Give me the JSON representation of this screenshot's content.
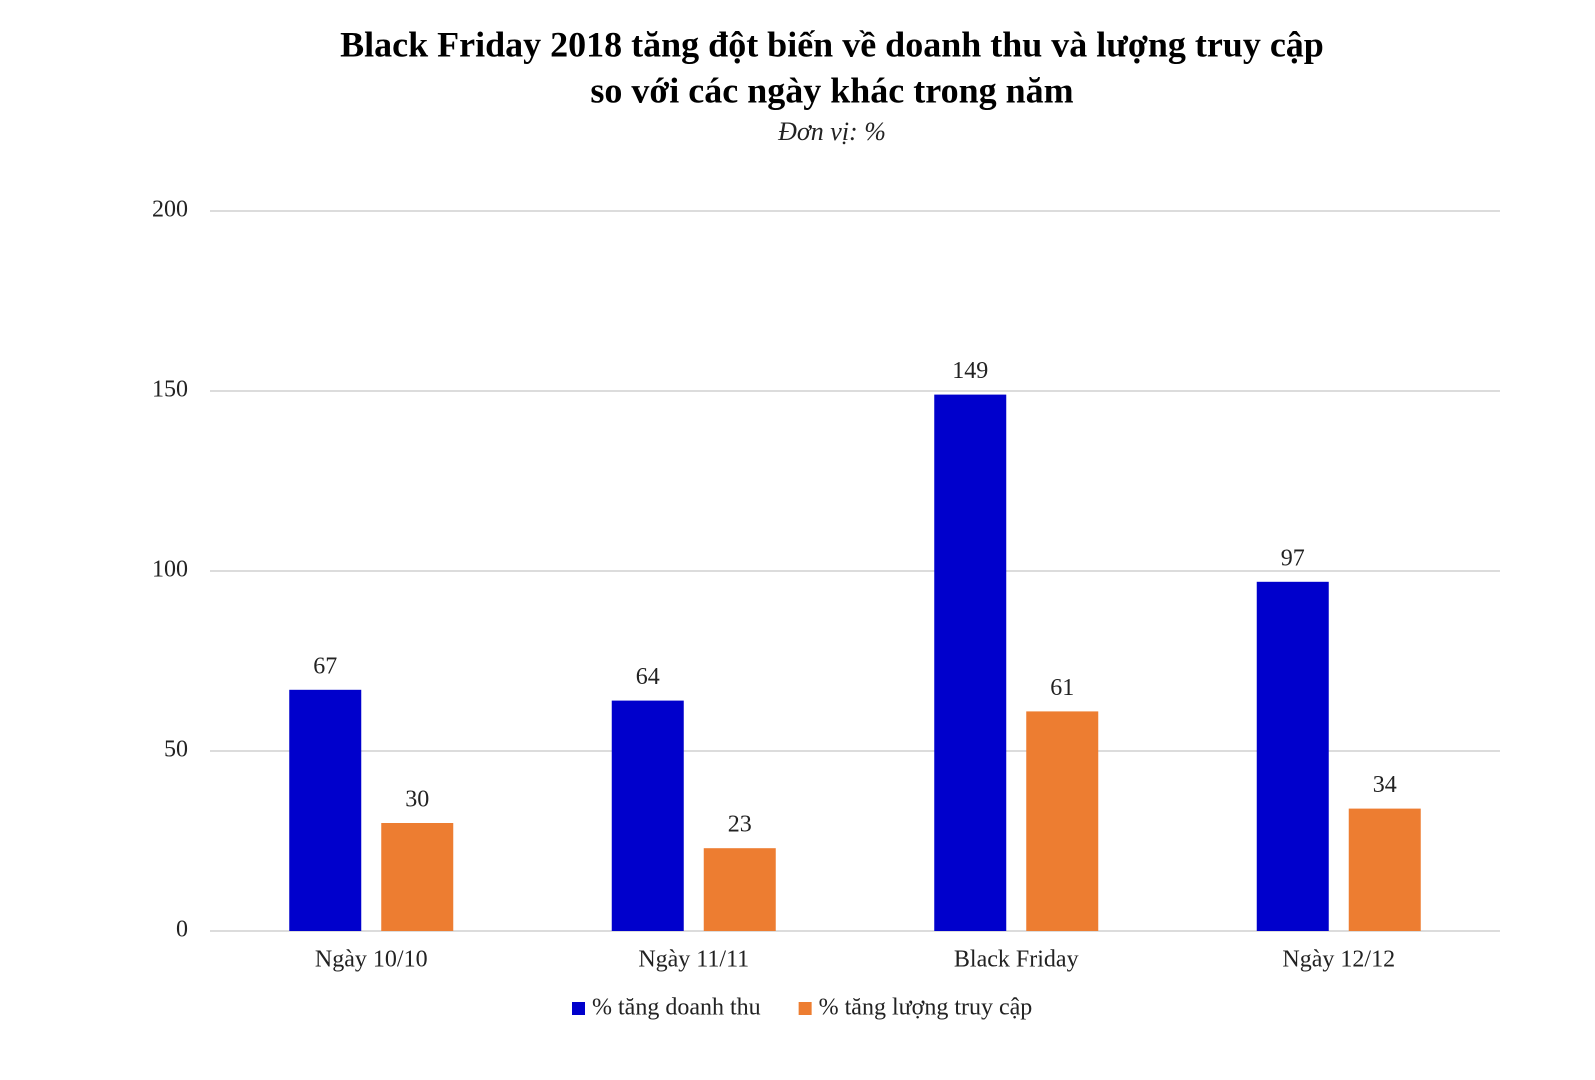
{
  "chart_data": {
    "type": "bar",
    "title": [
      "Black Friday 2018 tăng đột biến về doanh thu và lượng truy cập",
      "so với các ngày khác trong năm"
    ],
    "subtitle": "Đơn vị: %",
    "categories": [
      "Ngày 10/10",
      "Ngày 11/11",
      "Black Friday",
      "Ngày 12/12"
    ],
    "series": [
      {
        "name": "% tăng doanh thu",
        "color": "#0000cc",
        "values": [
          67,
          64,
          149,
          97
        ]
      },
      {
        "name": "% tăng lượng truy cập",
        "color": "#ed7d31",
        "values": [
          30,
          23,
          61,
          34
        ]
      }
    ],
    "ylim": [
      0,
      200
    ],
    "yticks": [
      0,
      50,
      100,
      150,
      200
    ],
    "grid": true,
    "legend": "bottom"
  }
}
